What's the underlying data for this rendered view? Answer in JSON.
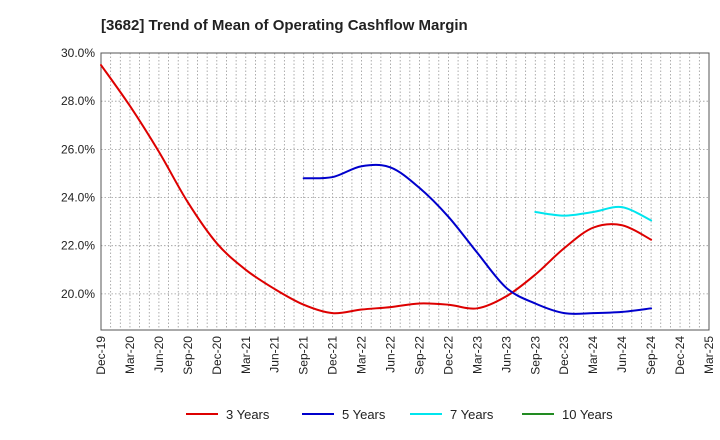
{
  "chart_data": {
    "type": "line",
    "title": "[3682]  Trend of Mean of Operating Cashflow Margin",
    "xlabel": "",
    "ylabel": "",
    "x": [
      "Dec-19",
      "Mar-20",
      "Jun-20",
      "Sep-20",
      "Dec-20",
      "Mar-21",
      "Jun-21",
      "Sep-21",
      "Dec-21",
      "Mar-22",
      "Jun-22",
      "Sep-22",
      "Dec-22",
      "Mar-23",
      "Jun-23",
      "Sep-23",
      "Dec-23",
      "Mar-24",
      "Jun-24",
      "Sep-24",
      "Dec-24",
      "Mar-25"
    ],
    "ylim": [
      18.5,
      30.0
    ],
    "yticks": [
      20.0,
      22.0,
      24.0,
      26.0,
      28.0,
      30.0
    ],
    "ytick_labels": [
      "20.0%",
      "22.0%",
      "24.0%",
      "26.0%",
      "28.0%",
      "30.0%"
    ],
    "grid": true,
    "legend_position": "bottom",
    "series": [
      {
        "name": "3 Years",
        "color": "#dd0000",
        "values": [
          29.5,
          27.8,
          25.9,
          23.8,
          22.1,
          21.0,
          20.2,
          19.55,
          19.2,
          19.35,
          19.45,
          19.6,
          19.55,
          19.4,
          19.9,
          20.8,
          21.9,
          22.75,
          22.85,
          22.25,
          null,
          null
        ]
      },
      {
        "name": "5 Years",
        "color": "#0000cc",
        "values": [
          null,
          null,
          null,
          null,
          null,
          null,
          null,
          24.8,
          24.85,
          25.3,
          25.25,
          24.4,
          23.2,
          21.7,
          20.25,
          19.6,
          19.2,
          19.2,
          19.25,
          19.4,
          null,
          null
        ]
      },
      {
        "name": "7 Years",
        "color": "#00e5ee",
        "values": [
          null,
          null,
          null,
          null,
          null,
          null,
          null,
          null,
          null,
          null,
          null,
          null,
          null,
          null,
          null,
          23.4,
          23.25,
          23.4,
          23.6,
          23.05,
          null,
          null
        ]
      },
      {
        "name": "10 Years",
        "color": "#228b22",
        "values": [
          null,
          null,
          null,
          null,
          null,
          null,
          null,
          null,
          null,
          null,
          null,
          null,
          null,
          null,
          null,
          null,
          null,
          null,
          null,
          null,
          null,
          null
        ]
      }
    ]
  }
}
